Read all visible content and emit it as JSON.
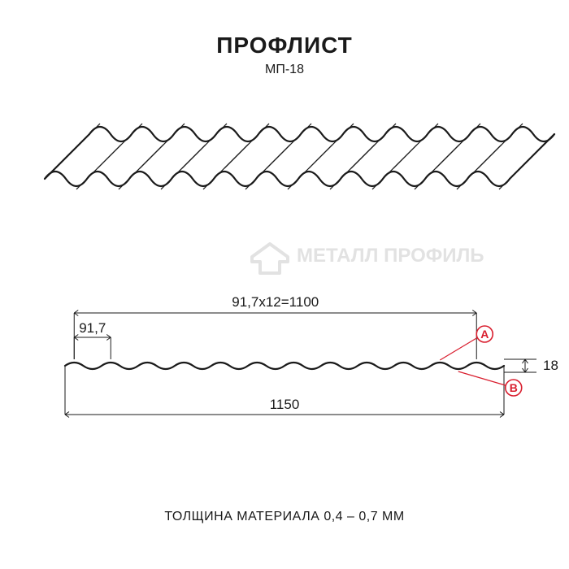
{
  "title": "ПРОФЛИСТ",
  "subtitle": "МП-18",
  "footer": "ТОЛЩИНА МАТЕРИАЛА 0,4 – 0,7 ММ",
  "watermark": "МЕТАЛЛ ПРОФИЛЬ",
  "dims": {
    "coverage_formula": "91,7x12=1100",
    "pitch": "91,7",
    "total_width": "1150",
    "height": "18"
  },
  "markers": {
    "a": "A",
    "b": "B"
  },
  "geometry": {
    "iso_waves": 11,
    "profile_waves": 12,
    "iso_amplitude": 18,
    "iso_wavelength": 52,
    "profile_amplitude": 8,
    "profile_wavelength": 45
  },
  "colors": {
    "bg": "#ffffff",
    "line": "#1a1a1a",
    "dim": "#1a1a1a",
    "marker_stroke": "#d91e2e",
    "marker_fill": "#ffffff",
    "watermark": "#e2e2e2",
    "text": "#1a1a1a"
  },
  "stroke": {
    "main": 2.2,
    "thin": 1.2,
    "dim": 1.0
  },
  "fonts": {
    "title": 28,
    "subtitle": 16,
    "dim": 17,
    "footer": 16,
    "watermark": 24,
    "marker": 14
  }
}
